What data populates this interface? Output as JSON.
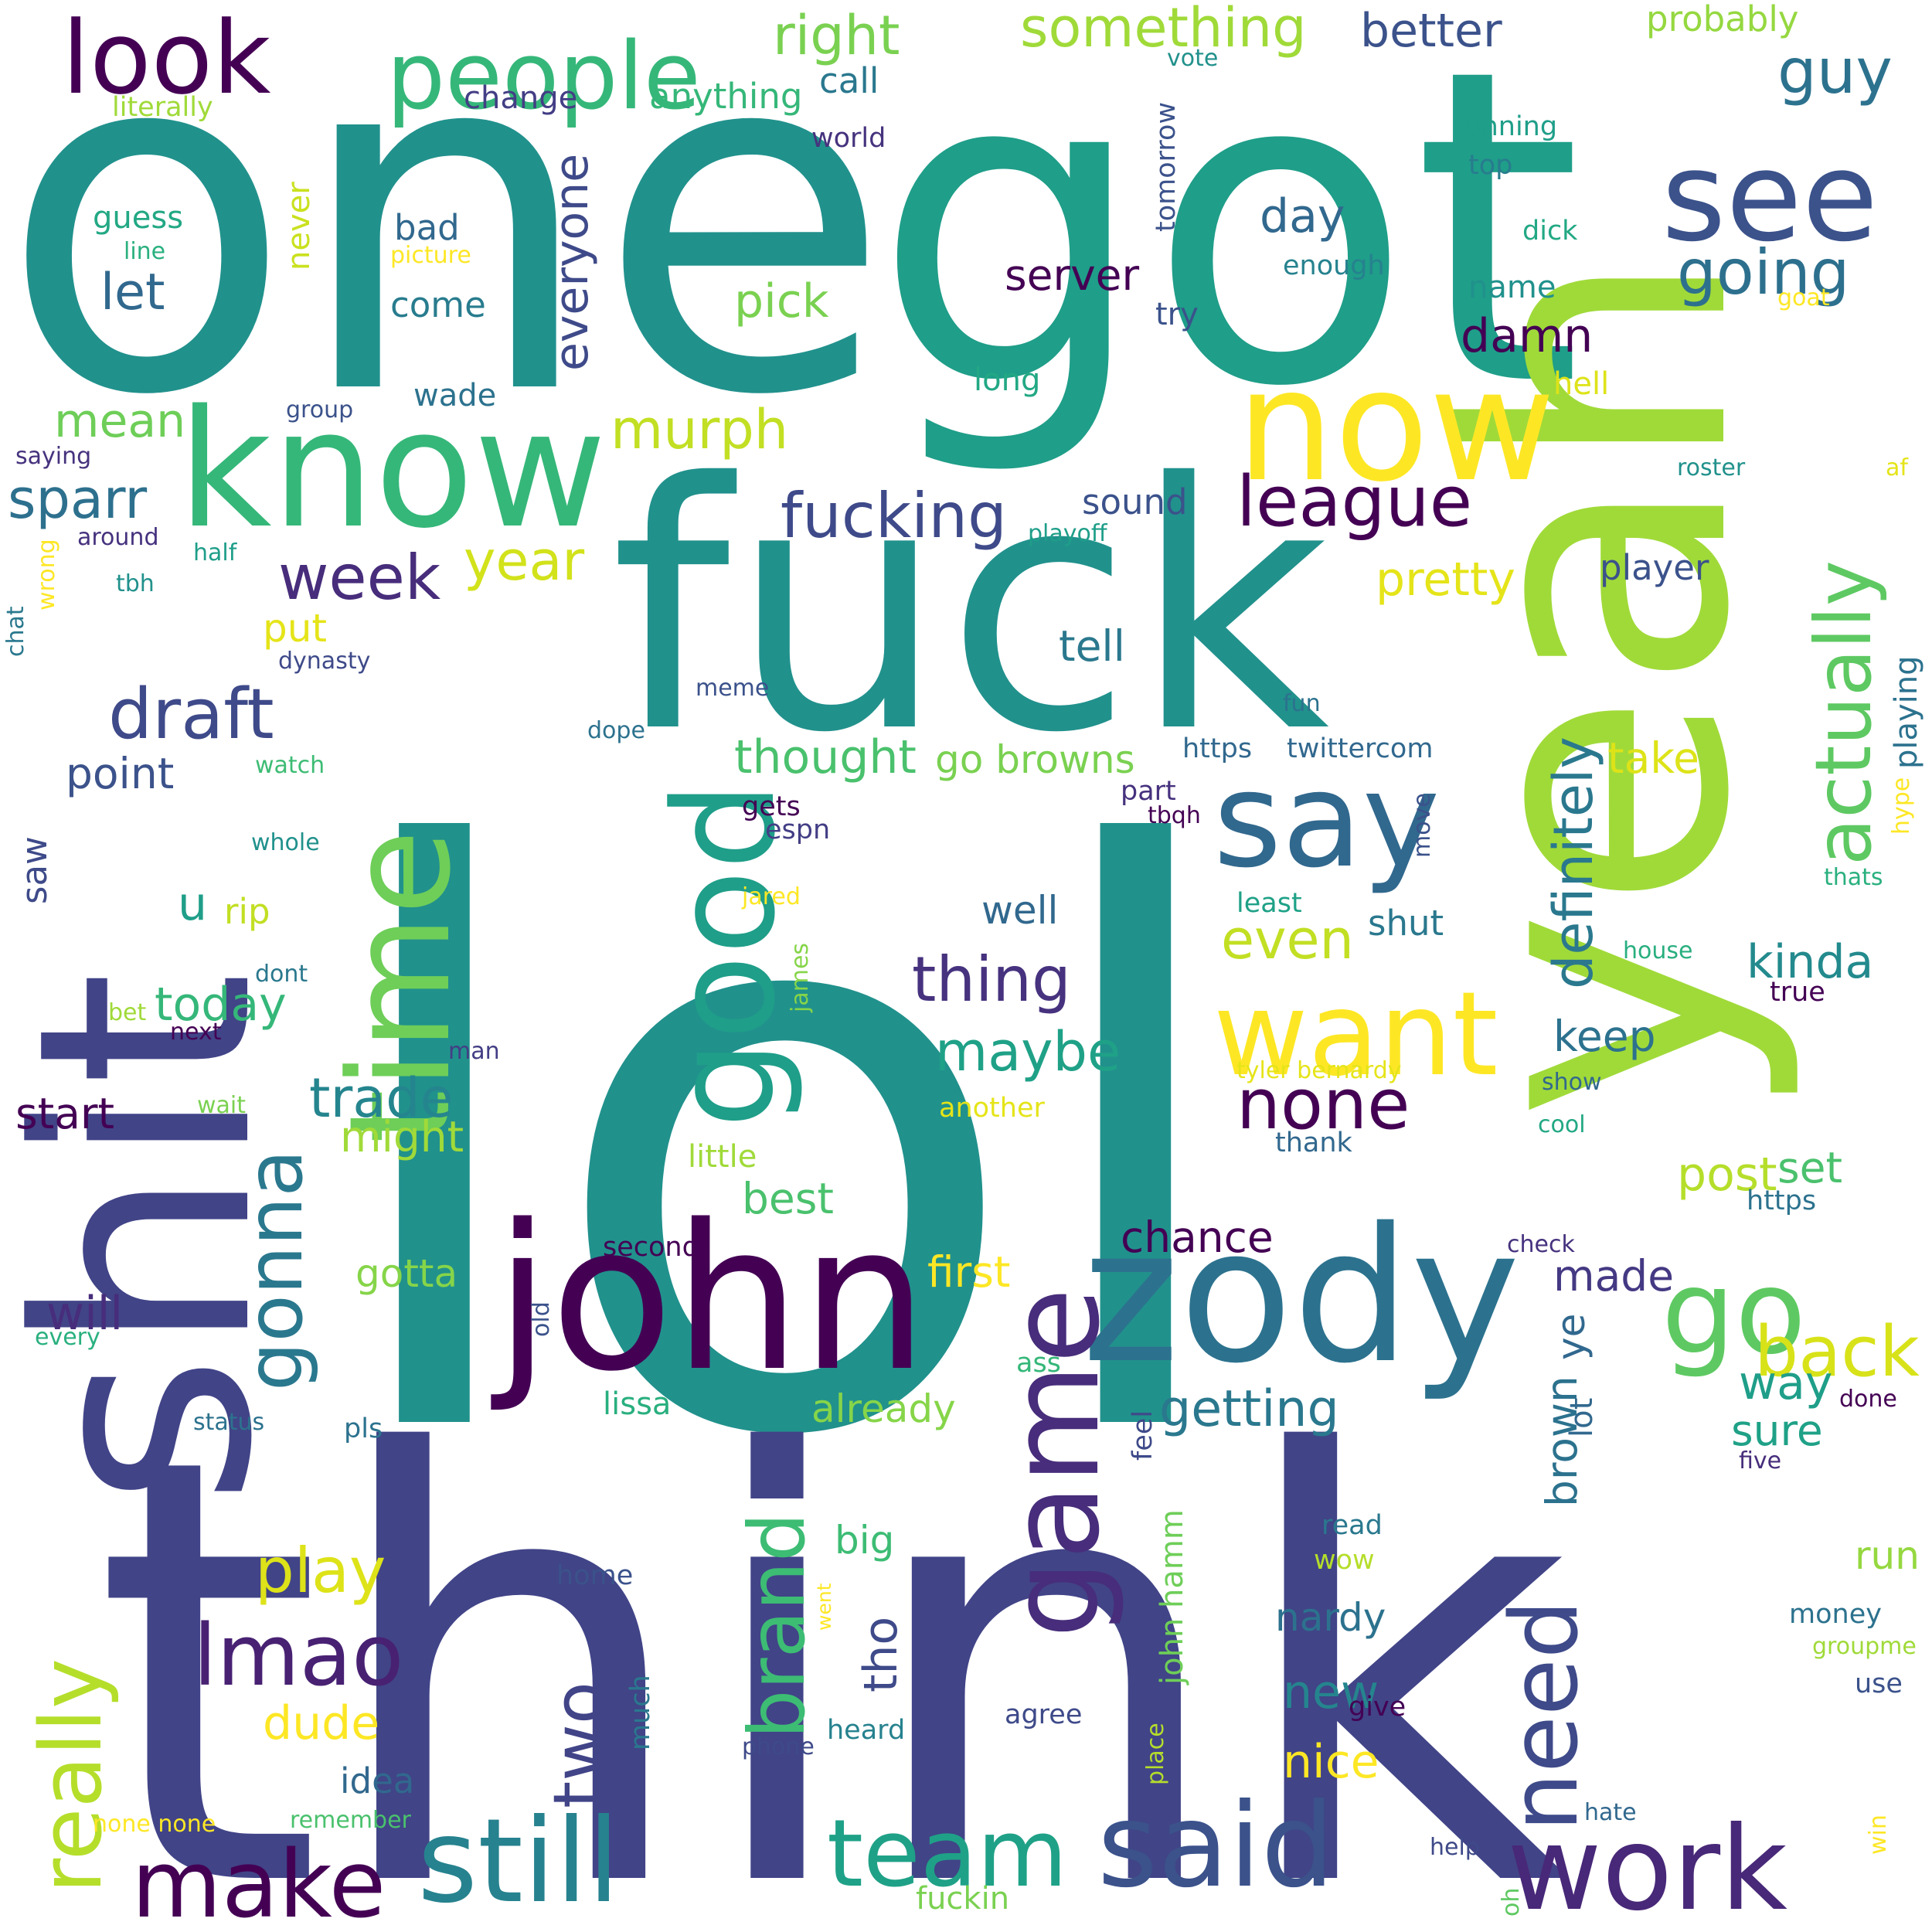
{
  "words": [
    {
      "text": "lol",
      "color": "#21918c"
    },
    {
      "text": "think",
      "color": "#414487"
    },
    {
      "text": "one",
      "color": "#21918c"
    },
    {
      "text": "got",
      "color": "#1f9e89"
    },
    {
      "text": "yeah",
      "color": "#a0da39"
    },
    {
      "text": "fuck",
      "color": "#21918c"
    },
    {
      "text": "shit",
      "color": "#414487"
    },
    {
      "text": "john",
      "color": "#440154"
    },
    {
      "text": "zody",
      "color": "#2c728e"
    },
    {
      "text": "know",
      "color": "#35b779"
    },
    {
      "text": "now",
      "color": "#fde725"
    },
    {
      "text": "time",
      "color": "#6ece58"
    },
    {
      "text": "good",
      "color": "#1f9e89"
    },
    {
      "text": "say",
      "color": "#31688e"
    },
    {
      "text": "game",
      "color": "#472d7b"
    },
    {
      "text": "want",
      "color": "#fde725"
    },
    {
      "text": "see",
      "color": "#3b528b"
    },
    {
      "text": "go",
      "color": "#5ec962"
    },
    {
      "text": "work",
      "color": "#482878"
    },
    {
      "text": "said",
      "color": "#3b528b"
    },
    {
      "text": "still",
      "color": "#26828e"
    },
    {
      "text": "people",
      "color": "#35b779"
    },
    {
      "text": "look",
      "color": "#440154"
    },
    {
      "text": "actually",
      "color": "#5ec962"
    },
    {
      "text": "need",
      "color": "#3e4a89"
    },
    {
      "text": "team",
      "color": "#1fa187"
    },
    {
      "text": "make",
      "color": "#440154"
    },
    {
      "text": "really",
      "color": "#b5de2b"
    },
    {
      "text": "gonna",
      "color": "#2a788e"
    },
    {
      "text": "brand",
      "color": "#3dbc74"
    },
    {
      "text": "two",
      "color": "#414487"
    },
    {
      "text": "lmao",
      "color": "#482173"
    },
    {
      "text": "fucking",
      "color": "#3e4a89"
    },
    {
      "text": "league",
      "color": "#440154"
    },
    {
      "text": "draft",
      "color": "#3e4a89"
    },
    {
      "text": "back",
      "color": "#d8e219"
    },
    {
      "text": "going",
      "color": "#2d708e"
    },
    {
      "text": "guy",
      "color": "#2c728e"
    },
    {
      "text": "week",
      "color": "#472d7b"
    },
    {
      "text": "none",
      "color": "#440154"
    },
    {
      "text": "definitely",
      "color": "#2a788e"
    },
    {
      "text": "thing",
      "color": "#46327e"
    },
    {
      "text": "play",
      "color": "#dde318"
    },
    {
      "text": "something",
      "color": "#a0da39"
    },
    {
      "text": "right",
      "color": "#7ad151"
    },
    {
      "text": "better",
      "color": "#3b528b"
    },
    {
      "text": "maybe",
      "color": "#1fa187"
    },
    {
      "text": "even",
      "color": "#c2df23"
    },
    {
      "text": "trade",
      "color": "#25858e"
    },
    {
      "text": "pretty",
      "color": "#e5e419"
    },
    {
      "text": "getting",
      "color": "#2a788e"
    },
    {
      "text": "murph",
      "color": "#c2df23"
    },
    {
      "text": "sparr",
      "color": "#2d708e"
    },
    {
      "text": "year",
      "color": "#d2e21b"
    },
    {
      "text": "pick",
      "color": "#7ad151"
    },
    {
      "text": "thought",
      "color": "#4ac16d"
    },
    {
      "text": "go browns",
      "color": "#7ad151"
    },
    {
      "text": "everyone",
      "color": "#3e4a89"
    },
    {
      "text": "post",
      "color": "#b5de2b"
    },
    {
      "text": "server",
      "color": "#440154"
    },
    {
      "text": "damn",
      "color": "#440154"
    },
    {
      "text": "kinda",
      "color": "#238a8d"
    },
    {
      "text": "day",
      "color": "#31688e"
    },
    {
      "text": "let",
      "color": "#31688e"
    },
    {
      "text": "point",
      "color": "#3b528b"
    },
    {
      "text": "tell",
      "color": "#2a788e"
    },
    {
      "text": "today",
      "color": "#35b779"
    },
    {
      "text": "start",
      "color": "#440154"
    },
    {
      "text": "mean",
      "color": "#6ece58"
    },
    {
      "text": "way",
      "color": "#1f9e89"
    },
    {
      "text": "sure",
      "color": "#1fa187"
    },
    {
      "text": "already",
      "color": "#86d549"
    },
    {
      "text": "chance",
      "color": "#440154"
    },
    {
      "text": "made",
      "color": "#443983"
    },
    {
      "text": "keep",
      "color": "#2c728e"
    },
    {
      "text": "first",
      "color": "#fde725"
    },
    {
      "text": "best",
      "color": "#4ac16d"
    },
    {
      "text": "nice",
      "color": "#fde725"
    },
    {
      "text": "new",
      "color": "#25858e"
    },
    {
      "text": "will",
      "color": "#472d7b"
    },
    {
      "text": "dude",
      "color": "#fde725"
    },
    {
      "text": "set",
      "color": "#4ac16d"
    },
    {
      "text": "player",
      "color": "#3b528b"
    },
    {
      "text": "take",
      "color": "#dde318"
    },
    {
      "text": "might",
      "color": "#a0da39"
    },
    {
      "text": "well",
      "color": "#31688e"
    },
    {
      "text": "tho",
      "color": "#3e4a89"
    },
    {
      "text": "nardy",
      "color": "#2c728e"
    },
    {
      "text": "run",
      "color": "#95d840"
    },
    {
      "text": "ye",
      "color": "#31688e"
    },
    {
      "text": "brown",
      "color": "#2c728e"
    },
    {
      "text": "lot",
      "color": "#31688e"
    },
    {
      "text": "u",
      "color": "#1f9e89"
    },
    {
      "text": "saw",
      "color": "#3e4a89"
    },
    {
      "text": "big",
      "color": "#3dbc74"
    },
    {
      "text": "gotta",
      "color": "#86d549"
    },
    {
      "text": "shut",
      "color": "#2a788e"
    },
    {
      "text": "put",
      "color": "#e5e419"
    },
    {
      "text": "sound",
      "color": "#3b528b"
    },
    {
      "text": "idea",
      "color": "#31688e"
    },
    {
      "text": "rip",
      "color": "#c2df23"
    },
    {
      "text": "lissa",
      "color": "#29af7f"
    },
    {
      "text": "probably",
      "color": "#95d840"
    },
    {
      "text": "call",
      "color": "#2a788e"
    },
    {
      "text": "anything",
      "color": "#35b779"
    },
    {
      "text": "change",
      "color": "#433e85"
    },
    {
      "text": "guess",
      "color": "#22a884"
    },
    {
      "text": "bad",
      "color": "#31688e"
    },
    {
      "text": "come",
      "color": "#287c8e"
    },
    {
      "text": "wade",
      "color": "#2c728e"
    },
    {
      "text": "never",
      "color": "#cae11f"
    },
    {
      "text": "fuckin",
      "color": "#7ad151"
    },
    {
      "text": "john hamm",
      "color": "#6ece58"
    },
    {
      "text": "literally",
      "color": "#a0da39"
    },
    {
      "text": "world",
      "color": "#46337e"
    },
    {
      "text": "vote",
      "color": "#21918c"
    },
    {
      "text": "running",
      "color": "#1f9e89"
    },
    {
      "text": "top",
      "color": "#287c8e"
    },
    {
      "text": "tomorrow",
      "color": "#3b528b"
    },
    {
      "text": "dick",
      "color": "#22a884"
    },
    {
      "text": "enough",
      "color": "#26828e"
    },
    {
      "text": "name",
      "color": "#21918c"
    },
    {
      "text": "goat",
      "color": "#fde725"
    },
    {
      "text": "line",
      "color": "#2ab07f"
    },
    {
      "text": "picture",
      "color": "#fde725"
    },
    {
      "text": "try",
      "color": "#3b528b"
    },
    {
      "text": "long",
      "color": "#22a884"
    },
    {
      "text": "hell",
      "color": "#dde318"
    },
    {
      "text": "group",
      "color": "#3b528b"
    },
    {
      "text": "saying",
      "color": "#46327e"
    },
    {
      "text": "roster",
      "color": "#21918c"
    },
    {
      "text": "af",
      "color": "#e5e419"
    },
    {
      "text": "around",
      "color": "#46327e"
    },
    {
      "text": "half",
      "color": "#1f9e89"
    },
    {
      "text": "playoff",
      "color": "#1f9e89"
    },
    {
      "text": "wrong",
      "color": "#fde725"
    },
    {
      "text": "tbh",
      "color": "#21918c"
    },
    {
      "text": "chat",
      "color": "#2a788e"
    },
    {
      "text": "dynasty",
      "color": "#3e4a89"
    },
    {
      "text": "meme",
      "color": "#3b528b"
    },
    {
      "text": "fun",
      "color": "#2c728e"
    },
    {
      "text": "playing",
      "color": "#2c728e"
    },
    {
      "text": "dope",
      "color": "#2c728e"
    },
    {
      "text": "https",
      "color": "#31688e"
    },
    {
      "text": "twittercom",
      "color": "#31688e"
    },
    {
      "text": "watch",
      "color": "#3dbc74"
    },
    {
      "text": "hype",
      "color": "#fde725"
    },
    {
      "text": "part",
      "color": "#46327e"
    },
    {
      "text": "tbqh",
      "color": "#440154"
    },
    {
      "text": "gets",
      "color": "#440154"
    },
    {
      "text": "espn",
      "color": "#433e85"
    },
    {
      "text": "whole",
      "color": "#21918c"
    },
    {
      "text": "jared",
      "color": "#fde725"
    },
    {
      "text": "least",
      "color": "#1fa187"
    },
    {
      "text": "move",
      "color": "#3b528b"
    },
    {
      "text": "thats",
      "color": "#2ab07f"
    },
    {
      "text": "house",
      "color": "#29af7f"
    },
    {
      "text": "true",
      "color": "#440154"
    },
    {
      "text": "dont",
      "color": "#2a788e"
    },
    {
      "text": "james",
      "color": "#86d549"
    },
    {
      "text": "bet",
      "color": "#a0da39"
    },
    {
      "text": "next",
      "color": "#440154"
    },
    {
      "text": "man",
      "color": "#433e85"
    },
    {
      "text": "tyler bernardy",
      "color": "#e5e419"
    },
    {
      "text": "show",
      "color": "#31688e"
    },
    {
      "text": "wait",
      "color": "#7ad151"
    },
    {
      "text": "another",
      "color": "#e5e419"
    },
    {
      "text": "cool",
      "color": "#22a884"
    },
    {
      "text": "thank",
      "color": "#31688e"
    },
    {
      "text": "https",
      "color": "#2c728e"
    },
    {
      "text": "little",
      "color": "#a0da39"
    },
    {
      "text": "check",
      "color": "#46327e"
    },
    {
      "text": "second",
      "color": "#440154"
    },
    {
      "text": "every",
      "color": "#2ab07f"
    },
    {
      "text": "old",
      "color": "#3b528b"
    },
    {
      "text": "ass",
      "color": "#35b779"
    },
    {
      "text": "done",
      "color": "#440154"
    },
    {
      "text": "feel",
      "color": "#3e4a89"
    },
    {
      "text": "five",
      "color": "#472d7b"
    },
    {
      "text": "status",
      "color": "#2c728e"
    },
    {
      "text": "pls",
      "color": "#2c728e"
    },
    {
      "text": "read",
      "color": "#2a788e"
    },
    {
      "text": "wow",
      "color": "#b5de2b"
    },
    {
      "text": "home",
      "color": "#3b528b"
    },
    {
      "text": "went",
      "color": "#fde725"
    },
    {
      "text": "money",
      "color": "#2c728e"
    },
    {
      "text": "groupme",
      "color": "#a0da39"
    },
    {
      "text": "use",
      "color": "#3b528b"
    },
    {
      "text": "give",
      "color": "#440154"
    },
    {
      "text": "agree",
      "color": "#3e4a89"
    },
    {
      "text": "heard",
      "color": "#26828e"
    },
    {
      "text": "much",
      "color": "#2a788e"
    },
    {
      "text": "phone",
      "color": "#3e4a89"
    },
    {
      "text": "place",
      "color": "#b5de2b"
    },
    {
      "text": "none none",
      "color": "#fde725"
    },
    {
      "text": "remember",
      "color": "#4ac16d"
    },
    {
      "text": "hate",
      "color": "#31688e"
    },
    {
      "text": "help",
      "color": "#3e4a89"
    },
    {
      "text": "oh",
      "color": "#5ec962"
    },
    {
      "text": "win",
      "color": "#fde725"
    }
  ]
}
